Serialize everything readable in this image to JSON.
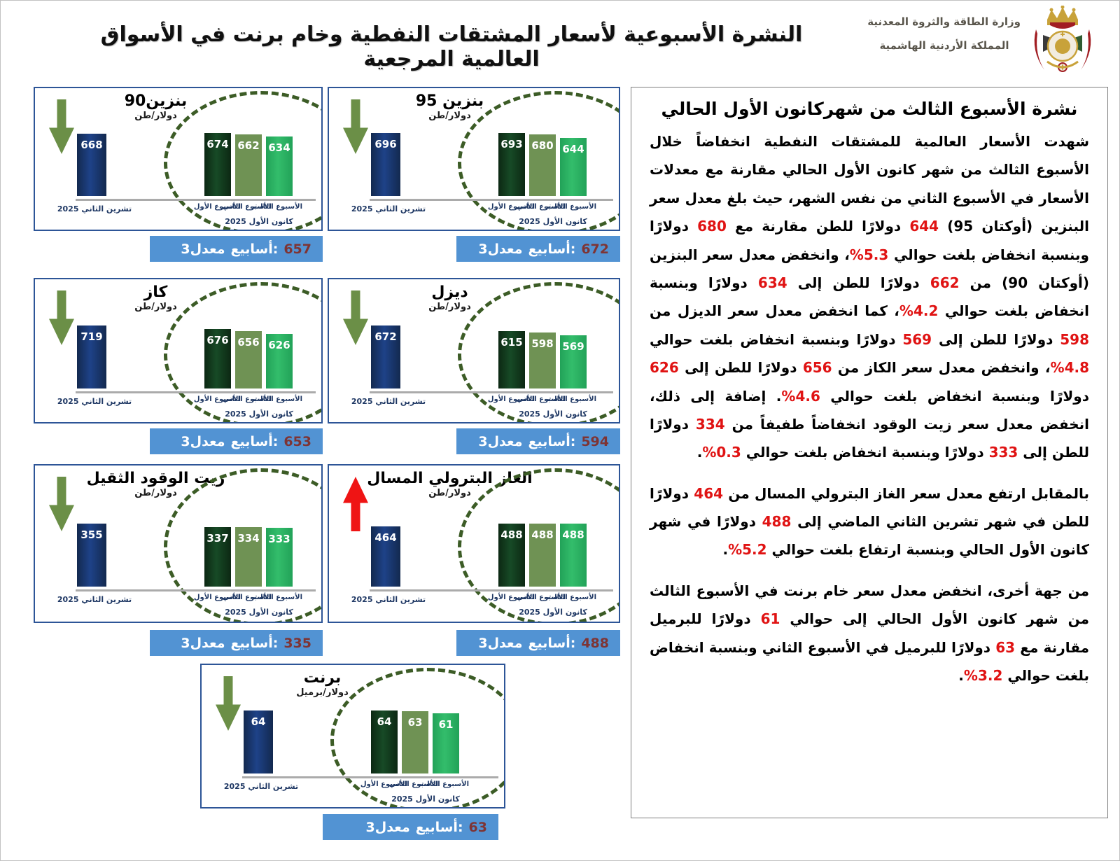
{
  "page_title": "النشرة الأسبوعية لأسعار المشتقات النفطية وخام برنت في الأسواق العالمية المرجعية",
  "logo": {
    "line1": "وزارة الطاقة والثروة المعدنية",
    "line2": "المملكة الأردنية الهاشمية",
    "crest": "jordan-royal-coat-of-arms"
  },
  "labels": {
    "avg_prefix_parts": [
      "معدل3",
      "أسابيع:"
    ]
  },
  "chart_data": [
    {
      "type": "bar",
      "title": "بنزين90",
      "unit": "دولار/طن",
      "trend": "down",
      "prev_label": "تشرين الثاني 2025",
      "prev_value": 668,
      "month_label": "كانون الأول 2025",
      "week_labels": [
        "الأسبوع الأول",
        "الأسبوع الثاني",
        "الأسبوع الثالث"
      ],
      "week_values": [
        674,
        662,
        634
      ],
      "avg_value": 657
    },
    {
      "type": "bar",
      "title": "بنزين 95",
      "unit": "دولار/طن",
      "trend": "down",
      "prev_label": "تشرين الثاني 2025",
      "prev_value": 696,
      "month_label": "كانون الأول 2025",
      "week_labels": [
        "الأسبوع الأول",
        "الأسبوع الثاني",
        "الأسبوع الثالث"
      ],
      "week_values": [
        693,
        680,
        644
      ],
      "avg_value": 672
    },
    {
      "type": "bar",
      "title": "كاز",
      "unit": "دولار/طن",
      "trend": "down",
      "prev_label": "تشرين الثاني 2025",
      "prev_value": 719,
      "month_label": "كانون الأول 2025",
      "week_labels": [
        "الأسبوع الأول",
        "الأسبوع الثاني",
        "الأسبوع الثالث"
      ],
      "week_values": [
        676,
        656,
        626
      ],
      "avg_value": 653
    },
    {
      "type": "bar",
      "title": "ديزل",
      "unit": "دولار/طن",
      "trend": "down",
      "prev_label": "تشرين الثاني 2025",
      "prev_value": 672,
      "month_label": "كانون الأول 2025",
      "week_labels": [
        "الأسبوع الأول",
        "الأسبوع الثاني",
        "الأسبوع الثالث"
      ],
      "week_values": [
        615,
        598,
        569
      ],
      "avg_value": 594
    },
    {
      "type": "bar",
      "title": "زيت الوقود الثقيل",
      "unit": "دولار/طن",
      "trend": "down",
      "prev_label": "تشرين الثاني 2025",
      "prev_value": 355,
      "month_label": "كانون الأول 2025",
      "week_labels": [
        "الأسبوع الأول",
        "الأسبوع الثاني",
        "الأسبوع الثالث"
      ],
      "week_values": [
        337,
        334,
        333
      ],
      "avg_value": 335
    },
    {
      "type": "bar",
      "title": "الغاز البترولي المسال",
      "unit": "دولار/طن",
      "trend": "up",
      "prev_label": "تشرين الثاني 2025",
      "prev_value": 464,
      "month_label": "كانون الأول 2025",
      "week_labels": [
        "الأسبوع الأول",
        "الأسبوع الثاني",
        "الأسبوع الثالث"
      ],
      "week_values": [
        488,
        488,
        488
      ],
      "avg_value": 488
    },
    {
      "type": "bar",
      "title": "برنت",
      "unit": "دولار/برميل",
      "trend": "down",
      "prev_label": "تشرين الثاني 2025",
      "prev_value": 64,
      "month_label": "كانون الأول 2025",
      "week_labels": [
        "الأسبوع الأول",
        "الأسبوع الثاني",
        "الأسبوع الثالث"
      ],
      "week_values": [
        64,
        63,
        61
      ],
      "avg_value": 63
    }
  ],
  "report": {
    "heading": "نشرة الأسبوع الثالث من شهركانون الأول الحالي",
    "paragraphs": [
      [
        {
          "t": "شهدت الأسعار العالمية للمشتقات النفطية انخفاضاً خلال الأسبوع الثالث من شهر كانون الأول الحالي مقارنة مع معدلات الأسعار في الأسبوع الثاني من نفس الشهر، حيث بلغ معدل سعر البنزين (أوكتان 95) "
        },
        {
          "t": "644",
          "red": true
        },
        {
          "t": " دولارًا للطن مقارنة مع "
        },
        {
          "t": "680",
          "red": true
        },
        {
          "t": " دولارًا وبنسبة انخفاض بلغت حوالي "
        },
        {
          "t": "5.3%",
          "red": true
        },
        {
          "t": "، وانخفض معدل سعر البنزين (أوكتان 90) من "
        },
        {
          "t": "662",
          "red": true
        },
        {
          "t": " دولارًا للطن إلى "
        },
        {
          "t": "634",
          "red": true
        },
        {
          "t": " دولارًا وبنسبة انخفاض بلغت حوالي "
        },
        {
          "t": "4.2%",
          "red": true
        },
        {
          "t": "، كما انخفض معدل سعر الديزل من "
        },
        {
          "t": "598",
          "red": true
        },
        {
          "t": " دولارًا للطن إلى "
        },
        {
          "t": "569",
          "red": true
        },
        {
          "t": " دولارًا وبنسبة انخفاض بلغت حوالي "
        },
        {
          "t": "4.8%",
          "red": true
        },
        {
          "t": "، وانخفض معدل سعر الكاز من "
        },
        {
          "t": "656",
          "red": true
        },
        {
          "t": " دولارًا للطن إلى "
        },
        {
          "t": "626",
          "red": true
        },
        {
          "t": " دولارًا وبنسبة انخفاض بلغت حوالي "
        },
        {
          "t": "4.6%",
          "red": true
        },
        {
          "t": ".  إضافة إلى ذلك، انخفض معدل سعر زيت الوقود انخفاضاً طفيفاً من "
        },
        {
          "t": "334",
          "red": true
        },
        {
          "t": " دولارًا للطن إلى "
        },
        {
          "t": "333",
          "red": true
        },
        {
          "t": " دولارًا وبنسبة انخفاض بلغت حوالي "
        },
        {
          "t": "0.3%",
          "red": true
        },
        {
          "t": "."
        }
      ],
      [
        {
          "t": "بالمقابل ارتفع معدل سعر الغاز البترولي المسال من "
        },
        {
          "t": "464",
          "red": true
        },
        {
          "t": " دولارًا للطن في شهر تشرين الثاني الماضي إلى "
        },
        {
          "t": "488",
          "red": true
        },
        {
          "t": " دولارًا في شهر كانون الأول الحالي وبنسبة ارتفاع بلغت حوالي "
        },
        {
          "t": "5.2%",
          "red": true
        },
        {
          "t": "."
        }
      ],
      [
        {
          "t": "من جهة أخرى، انخفض معدل سعر خام برنت في الأسبوع الثالث من شهر كانون الأول الحالي إلى حوالي "
        },
        {
          "t": "61",
          "red": true
        },
        {
          "t": " دولارًا للبرميل مقارنة مع "
        },
        {
          "t": "63",
          "red": true
        },
        {
          "t": " دولارًا للبرميل في الأسبوع الثاني وبنسبة انخفاض بلغت حوالي "
        },
        {
          "t": "3.2%",
          "red": true
        },
        {
          "t": "."
        }
      ]
    ]
  },
  "colors": {
    "panel_border": "#2d5597",
    "strip_blue": "#5293d3",
    "strip_number": "#7e3434",
    "bar_navy": "#1e4288",
    "bar_week1": "#143a20",
    "bar_week2": "#6f9254",
    "bar_week3": "#2bb161",
    "ellipse_green": "#3c5c26",
    "arrow_down_green": "#6b8f47",
    "arrow_up_red": "#ef1414",
    "text_red": "#e01313",
    "axis_label_navy": "#1f3864"
  }
}
